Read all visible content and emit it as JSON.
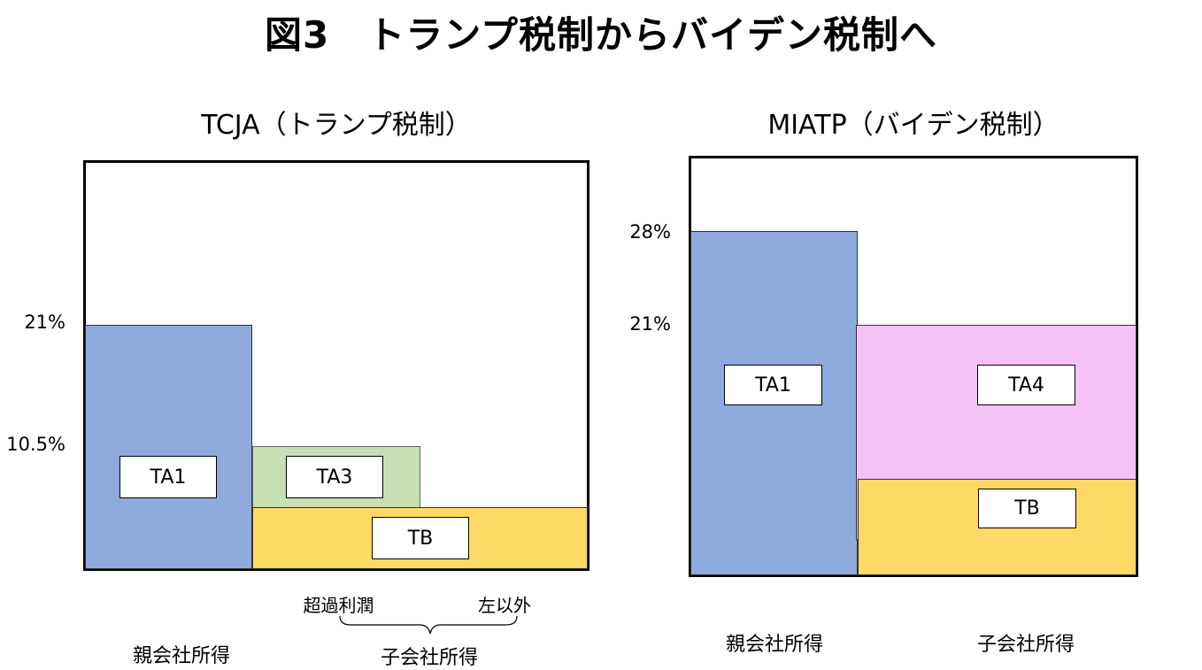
{
  "title": "図3　トランプ税制からバイデン税制へ",
  "left": {
    "subtitle": "TCJA（トランプ税制）",
    "pct_21": "21%",
    "pct_105": "10.5%",
    "ta1": "TA1",
    "ta3": "TA3",
    "tb": "TB",
    "excess": "超過利潤",
    "other": "左以外",
    "parent": "親会社所得",
    "sub": "子会社所得"
  },
  "right": {
    "subtitle": "MIATP（バイデン税制）",
    "pct_28": "28%",
    "pct_21": "21%",
    "ta1": "TA1",
    "ta4": "TA4",
    "tb": "TB",
    "parent": "親会社所得",
    "sub": "子会社所得"
  },
  "colors": {
    "parent_block": "#8faadc",
    "excess_block": "#c5e0b4",
    "tb_block": "#ffd966",
    "ta4_block": "#f4c2f6"
  }
}
